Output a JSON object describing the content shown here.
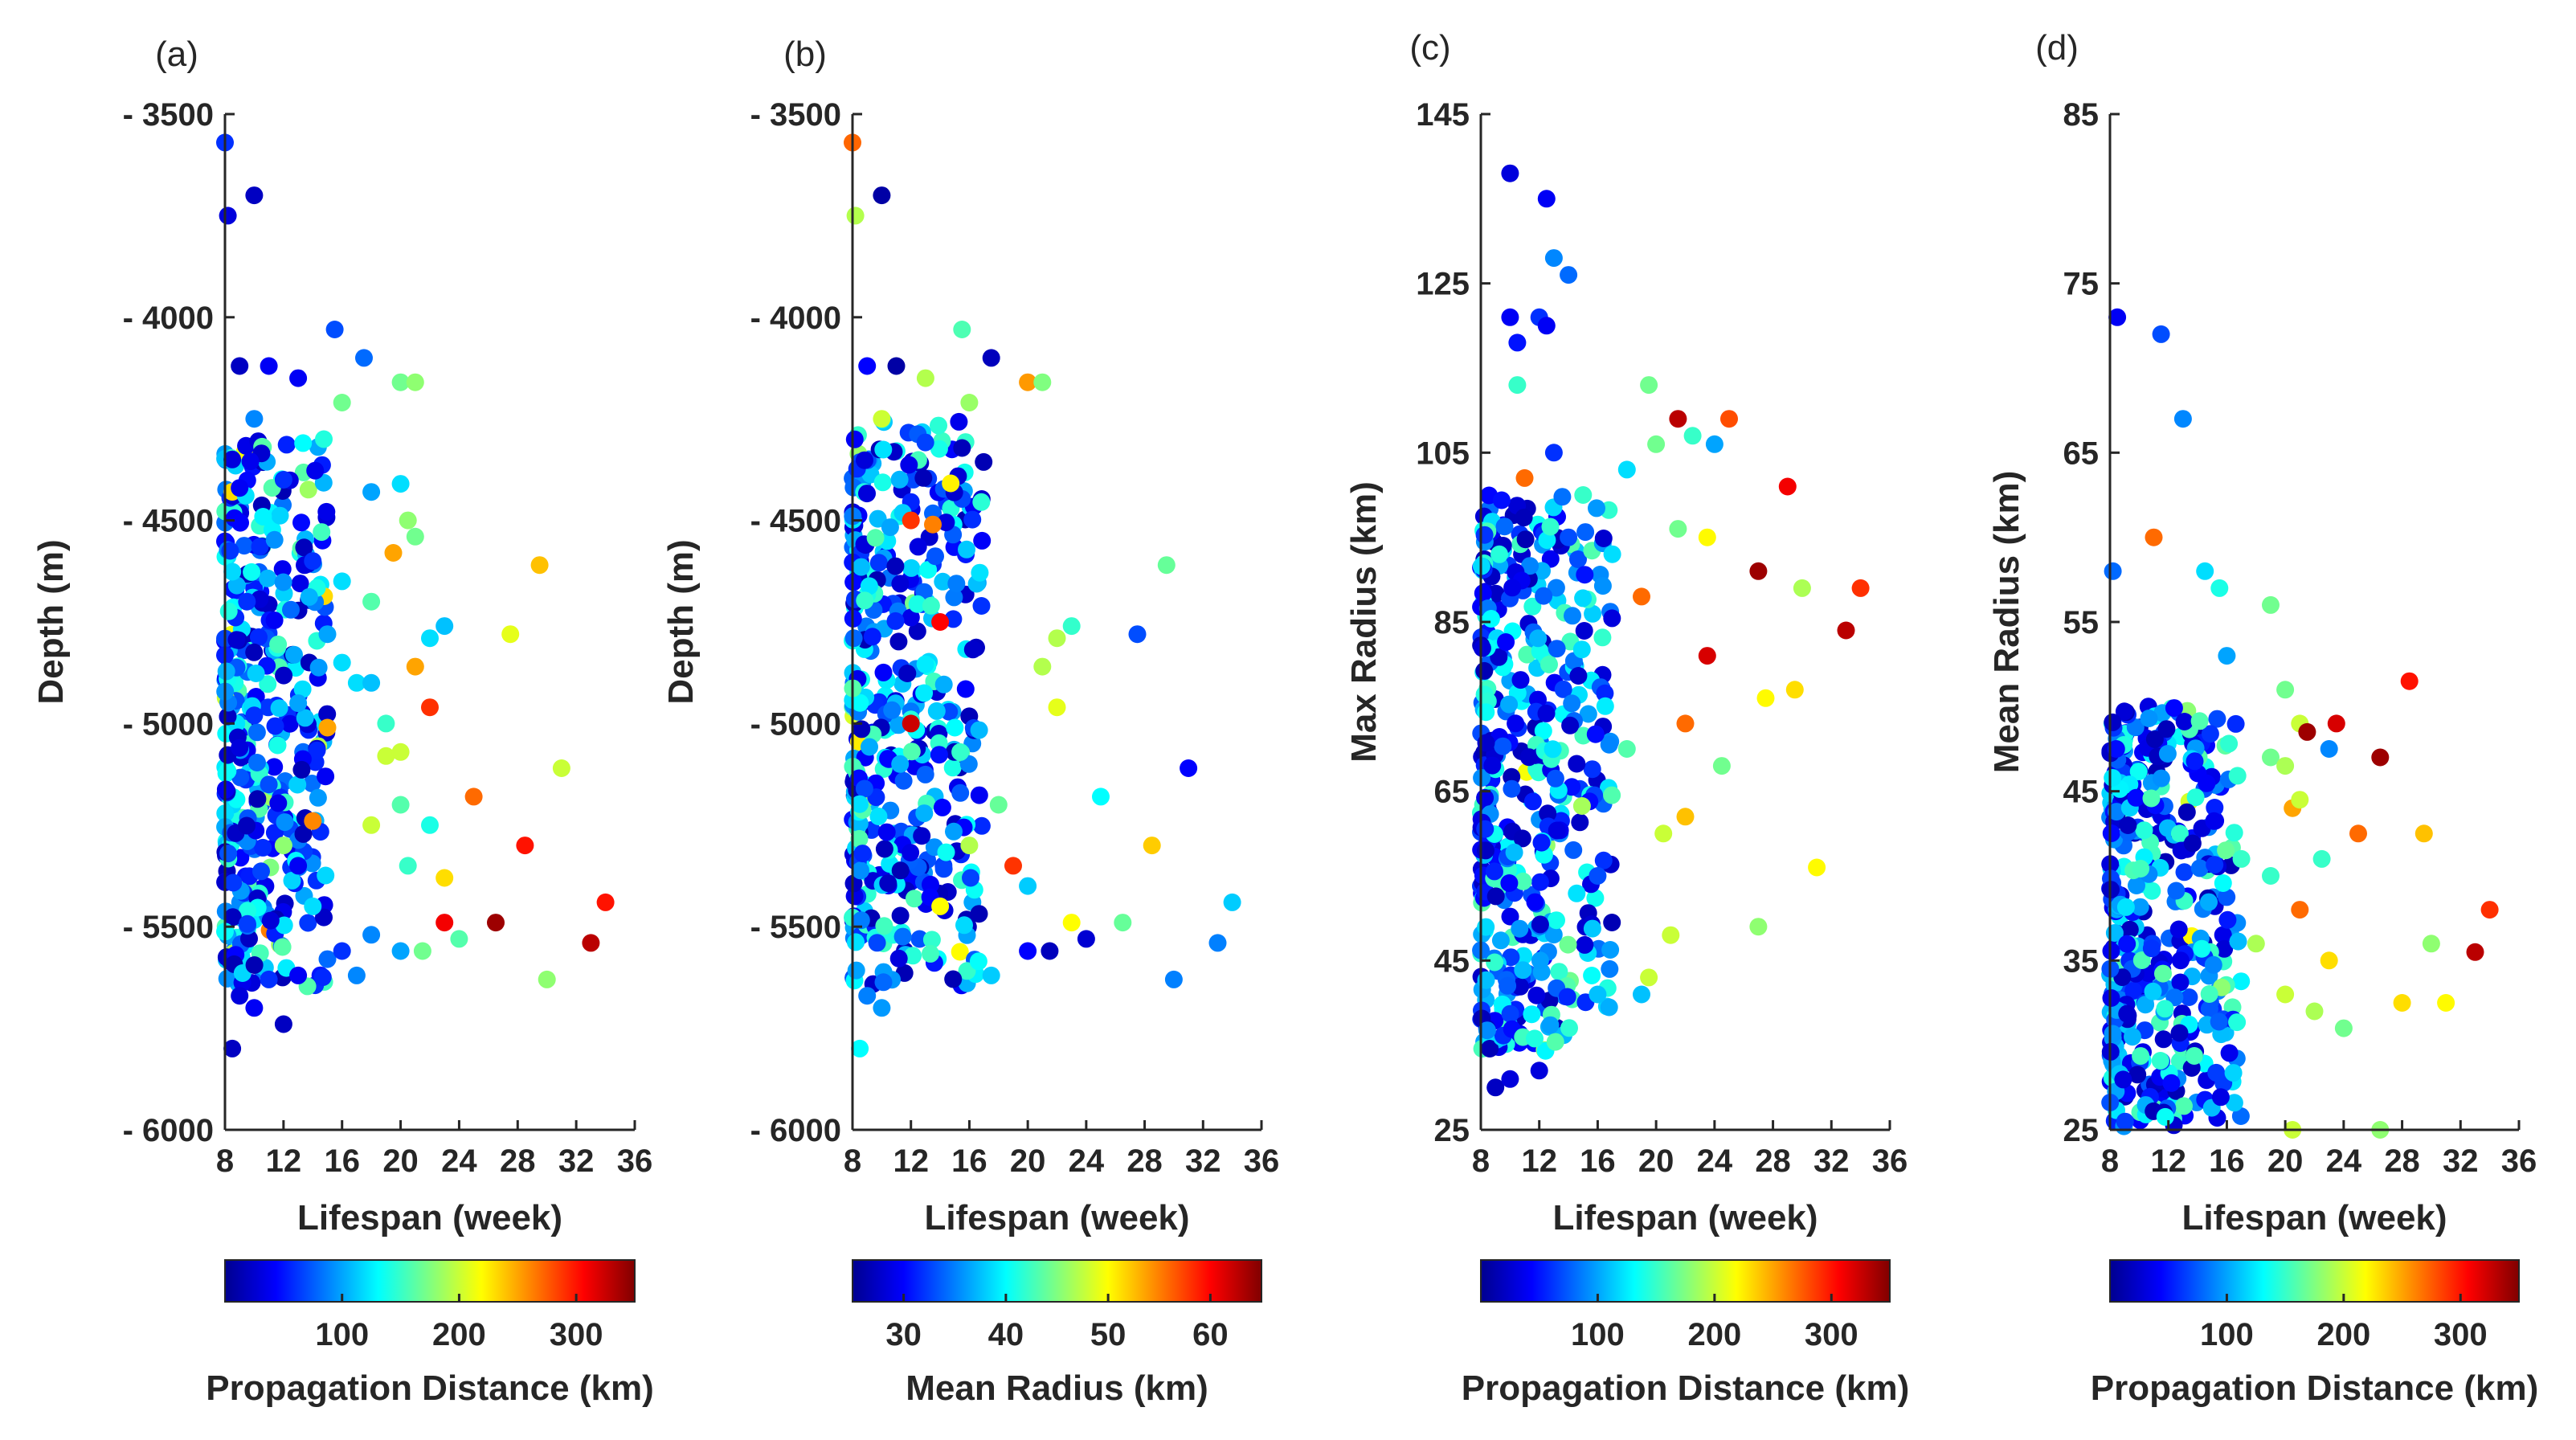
{
  "colormap": [
    "#00008f",
    "#0000ff",
    "#0080ff",
    "#00ffff",
    "#80ff80",
    "#ffff00",
    "#ff8000",
    "#ff0000",
    "#800000"
  ],
  "chart_data": [
    {
      "type": "scatter",
      "panel_label": "(a)",
      "xlabel": "Lifespan (week)",
      "ylabel": "Depth (m)",
      "xlim": [
        8,
        36
      ],
      "ylim": [
        3500,
        6000
      ],
      "y_reversed": true,
      "xticks": [
        "8",
        "12",
        "16",
        "20",
        "24",
        "28",
        "32",
        "36"
      ],
      "yticks": [
        "- 3500",
        "- 4000",
        "- 4500",
        "- 5000",
        "- 5500",
        "- 6000"
      ],
      "ytick_values": [
        3500,
        4000,
        4500,
        5000,
        5500,
        6000
      ],
      "colorbar": {
        "label": "Propagation Distance (km)",
        "range": [
          0,
          350
        ],
        "ticks": [
          "100",
          "200",
          "300"
        ],
        "tick_values": [
          100,
          200,
          300
        ]
      },
      "points": [
        [
          8,
          3570,
          60
        ],
        [
          8.2,
          3750,
          30
        ],
        [
          10,
          3700,
          20
        ],
        [
          15.5,
          4030,
          70
        ],
        [
          17.5,
          4100,
          80
        ],
        [
          16,
          4210,
          170
        ],
        [
          20,
          4160,
          170
        ],
        [
          21,
          4160,
          180
        ],
        [
          9,
          4120,
          20
        ],
        [
          11,
          4120,
          40
        ],
        [
          13,
          4150,
          40
        ],
        [
          10,
          4250,
          90
        ],
        [
          8.5,
          4350,
          30
        ],
        [
          9,
          4420,
          40
        ],
        [
          12,
          4400,
          60
        ],
        [
          18,
          4430,
          100
        ],
        [
          20,
          4410,
          120
        ],
        [
          21,
          4540,
          170
        ],
        [
          20.5,
          4500,
          180
        ],
        [
          19.5,
          4580,
          250
        ],
        [
          29.5,
          4610,
          240
        ],
        [
          14,
          4600,
          60
        ],
        [
          16,
          4650,
          120
        ],
        [
          18,
          4700,
          160
        ],
        [
          27.5,
          4780,
          210
        ],
        [
          22,
          4790,
          120
        ],
        [
          23,
          4760,
          110
        ],
        [
          21,
          4860,
          250
        ],
        [
          22,
          4960,
          290
        ],
        [
          15,
          5010,
          250
        ],
        [
          19,
          5080,
          200
        ],
        [
          20,
          5070,
          200
        ],
        [
          31,
          5110,
          200
        ],
        [
          25,
          5180,
          270
        ],
        [
          28.5,
          5300,
          300
        ],
        [
          23,
          5380,
          230
        ],
        [
          34,
          5440,
          300
        ],
        [
          23,
          5490,
          310
        ],
        [
          26.5,
          5490,
          340
        ],
        [
          33,
          5540,
          330
        ],
        [
          21.5,
          5560,
          170
        ],
        [
          24,
          5530,
          160
        ],
        [
          20,
          5560,
          100
        ],
        [
          30,
          5630,
          180
        ],
        [
          9,
          5670,
          30
        ],
        [
          10,
          5700,
          40
        ],
        [
          12,
          5740,
          20
        ],
        [
          8.5,
          5800,
          20
        ],
        [
          11,
          5630,
          60
        ],
        [
          13,
          5620,
          40
        ],
        [
          15,
          5580,
          80
        ],
        [
          16,
          5560,
          60
        ],
        [
          18,
          5520,
          90
        ],
        [
          17,
          5620,
          90
        ],
        [
          14,
          5450,
          120
        ],
        [
          12,
          5300,
          180
        ],
        [
          14,
          5240,
          260
        ],
        [
          18,
          5250,
          200
        ],
        [
          20,
          5200,
          160
        ],
        [
          22,
          5250,
          140
        ],
        [
          19,
          5000,
          150
        ],
        [
          17,
          4900,
          120
        ],
        [
          16,
          4850,
          120
        ],
        [
          13,
          4950,
          100
        ],
        [
          10,
          4980,
          60
        ],
        [
          9,
          5060,
          30
        ],
        [
          11,
          5150,
          70
        ],
        [
          13,
          5350,
          40
        ],
        [
          9.5,
          4700,
          60
        ],
        [
          12.5,
          4720,
          80
        ],
        [
          15,
          4780,
          100
        ],
        [
          18,
          4900,
          110
        ],
        [
          20.5,
          5350,
          150
        ]
      ],
      "cloud": {
        "x": [
          8,
          15
        ],
        "y": [
          4300,
          5650
        ],
        "count": 380,
        "seed": 11
      }
    },
    {
      "type": "scatter",
      "panel_label": "(b)",
      "xlabel": "Lifespan (week)",
      "ylabel": "Depth (m)",
      "xlim": [
        8,
        36
      ],
      "ylim": [
        3500,
        6000
      ],
      "y_reversed": true,
      "xticks": [
        "8",
        "12",
        "16",
        "20",
        "24",
        "28",
        "32",
        "36"
      ],
      "yticks": [
        "- 3500",
        "- 4000",
        "- 4500",
        "- 5000",
        "- 5500",
        "- 6000"
      ],
      "ytick_values": [
        3500,
        4000,
        4500,
        5000,
        5500,
        6000
      ],
      "colorbar": {
        "label": "Mean Radius (km)",
        "range": [
          25,
          65
        ],
        "ticks": [
          "30",
          "40",
          "50",
          "60"
        ],
        "tick_values": [
          30,
          40,
          50,
          60
        ]
      },
      "points": [
        [
          8,
          3570,
          56
        ],
        [
          8.2,
          3750,
          47
        ],
        [
          10,
          3700,
          26
        ],
        [
          15.5,
          4030,
          43
        ],
        [
          17.5,
          4100,
          27
        ],
        [
          16,
          4210,
          46
        ],
        [
          20,
          4160,
          54
        ],
        [
          21,
          4160,
          45
        ],
        [
          9,
          4120,
          30
        ],
        [
          11,
          4120,
          26
        ],
        [
          13,
          4150,
          47
        ],
        [
          10,
          4250,
          48
        ],
        [
          29.5,
          4610,
          44
        ],
        [
          27.5,
          4780,
          33
        ],
        [
          22,
          4790,
          47
        ],
        [
          23,
          4760,
          42
        ],
        [
          21,
          4860,
          47
        ],
        [
          22,
          4960,
          49
        ],
        [
          15,
          5010,
          40
        ],
        [
          31,
          5110,
          30
        ],
        [
          25,
          5180,
          40
        ],
        [
          28.5,
          5300,
          52
        ],
        [
          34,
          5440,
          38
        ],
        [
          23,
          5490,
          50
        ],
        [
          26.5,
          5490,
          44
        ],
        [
          33,
          5540,
          35
        ],
        [
          21.5,
          5560,
          27
        ],
        [
          24,
          5530,
          28
        ],
        [
          20,
          5560,
          30
        ],
        [
          30,
          5630,
          35
        ],
        [
          9,
          5670,
          35
        ],
        [
          10,
          5700,
          36
        ],
        [
          8.5,
          5800,
          40
        ],
        [
          12,
          4500,
          58
        ],
        [
          13.5,
          4510,
          55
        ],
        [
          14,
          4750,
          60
        ],
        [
          12,
          5000,
          62
        ],
        [
          19,
          5350,
          58
        ],
        [
          16,
          5300,
          47
        ],
        [
          18,
          5200,
          44
        ],
        [
          20,
          5400,
          38
        ],
        [
          17.5,
          5620,
          38
        ],
        [
          14,
          5450,
          50
        ]
      ],
      "cloud": {
        "x": [
          8,
          17
        ],
        "y": [
          4250,
          5650
        ],
        "count": 420,
        "seed": 23
      }
    },
    {
      "type": "scatter",
      "panel_label": "(c)",
      "xlabel": "Lifespan (week)",
      "ylabel": "Max Radius (km)",
      "xlim": [
        8,
        36
      ],
      "ylim": [
        25,
        145
      ],
      "y_reversed": false,
      "xticks": [
        "8",
        "12",
        "16",
        "20",
        "24",
        "28",
        "32",
        "36"
      ],
      "yticks": [
        "145",
        "125",
        "105",
        "85",
        "65",
        "45",
        "25"
      ],
      "ytick_values": [
        145,
        125,
        105,
        85,
        65,
        45,
        25
      ],
      "colorbar": {
        "label": "Propagation Distance (km)",
        "range": [
          0,
          350
        ],
        "ticks": [
          "100",
          "200",
          "300"
        ],
        "tick_values": [
          100,
          200,
          300
        ]
      },
      "points": [
        [
          10,
          138,
          30
        ],
        [
          12.5,
          135,
          40
        ],
        [
          13,
          128,
          90
        ],
        [
          14,
          126,
          80
        ],
        [
          10,
          121,
          40
        ],
        [
          12,
          121,
          60
        ],
        [
          10.5,
          118,
          50
        ],
        [
          12.5,
          120,
          40
        ],
        [
          10.5,
          113,
          150
        ],
        [
          21.5,
          109,
          330
        ],
        [
          25,
          109,
          280
        ],
        [
          29,
          101,
          310
        ],
        [
          19.5,
          113,
          170
        ],
        [
          20,
          106,
          170
        ],
        [
          22.5,
          107,
          150
        ],
        [
          24,
          106,
          100
        ],
        [
          18,
          103,
          120
        ],
        [
          21.5,
          96,
          170
        ],
        [
          23.5,
          95,
          220
        ],
        [
          17,
          93,
          120
        ],
        [
          34,
          89,
          290
        ],
        [
          30,
          89,
          190
        ],
        [
          27,
          91,
          340
        ],
        [
          33,
          84,
          330
        ],
        [
          23.5,
          81,
          320
        ],
        [
          27.5,
          76,
          220
        ],
        [
          29.5,
          77,
          230
        ],
        [
          22,
          73,
          270
        ],
        [
          24.5,
          68,
          170
        ],
        [
          31,
          56,
          220
        ],
        [
          27,
          49,
          180
        ],
        [
          19.5,
          43,
          200
        ],
        [
          21,
          48,
          200
        ],
        [
          19,
          41,
          110
        ],
        [
          16,
          41,
          110
        ],
        [
          20.5,
          60,
          200
        ],
        [
          22,
          62,
          240
        ],
        [
          9,
          30,
          20
        ],
        [
          10,
          31,
          30
        ],
        [
          12,
          32,
          30
        ],
        [
          11,
          102,
          270
        ],
        [
          19,
          88,
          270
        ],
        [
          16,
          55,
          70
        ],
        [
          18,
          70,
          160
        ],
        [
          15,
          100,
          150
        ],
        [
          13,
          105,
          60
        ],
        [
          14,
          95,
          70
        ]
      ],
      "cloud": {
        "x": [
          8,
          17
        ],
        "y": [
          34,
          100
        ],
        "count": 420,
        "seed": 37
      }
    },
    {
      "type": "scatter",
      "panel_label": "(d)",
      "xlabel": "Lifespan (week)",
      "ylabel": "Mean Radius (km)",
      "xlim": [
        8,
        36
      ],
      "ylim": [
        25,
        85
      ],
      "y_reversed": false,
      "xticks": [
        "8",
        "12",
        "16",
        "20",
        "24",
        "28",
        "32",
        "36"
      ],
      "yticks": [
        "85",
        "75",
        "65",
        "55",
        "45",
        "35",
        "25"
      ],
      "ytick_values": [
        85,
        75,
        65,
        55,
        45,
        35,
        25
      ],
      "colorbar": {
        "label": "Propagation Distance (km)",
        "range": [
          0,
          350
        ],
        "ticks": [
          "100",
          "200",
          "300"
        ],
        "tick_values": [
          100,
          200,
          300
        ]
      },
      "points": [
        [
          8.5,
          73,
          40
        ],
        [
          11.5,
          72,
          70
        ],
        [
          13,
          67,
          90
        ],
        [
          11,
          60,
          270
        ],
        [
          8.2,
          58,
          80
        ],
        [
          14.5,
          58,
          120
        ],
        [
          15.5,
          57,
          140
        ],
        [
          19,
          56,
          170
        ],
        [
          16,
          53,
          100
        ],
        [
          20,
          51,
          170
        ],
        [
          28.5,
          51.5,
          300
        ],
        [
          21,
          49,
          200
        ],
        [
          21.5,
          48.5,
          340
        ],
        [
          23.5,
          49,
          320
        ],
        [
          26.5,
          47,
          340
        ],
        [
          19,
          47,
          170
        ],
        [
          23,
          47.5,
          90
        ],
        [
          20,
          46.5,
          190
        ],
        [
          20.5,
          44,
          250
        ],
        [
          29.5,
          42.5,
          240
        ],
        [
          25,
          42.5,
          270
        ],
        [
          22.5,
          41,
          150
        ],
        [
          21,
          38,
          270
        ],
        [
          34,
          38,
          290
        ],
        [
          30,
          36,
          180
        ],
        [
          33,
          35.5,
          330
        ],
        [
          23,
          35,
          230
        ],
        [
          31,
          32.5,
          220
        ],
        [
          28,
          32.5,
          230
        ],
        [
          24,
          31,
          170
        ],
        [
          20.5,
          25,
          200
        ],
        [
          26.5,
          25,
          180
        ],
        [
          22,
          32,
          190
        ],
        [
          20,
          33,
          200
        ],
        [
          18,
          36,
          190
        ],
        [
          17,
          41,
          150
        ],
        [
          19,
          40,
          150
        ],
        [
          21,
          44.5,
          200
        ]
      ],
      "cloud": {
        "x": [
          8,
          17
        ],
        "y": [
          25,
          50
        ],
        "count": 420,
        "seed": 53
      }
    }
  ]
}
